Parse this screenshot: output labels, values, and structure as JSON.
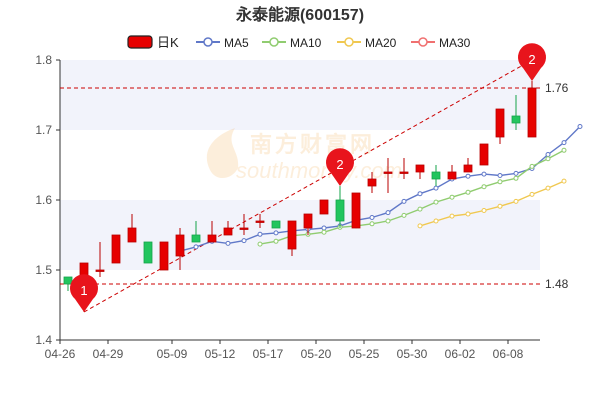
{
  "chart_data": {
    "type": "candlestick",
    "title": "永泰能源(600157)",
    "legend": {
      "placement": "top",
      "items": [
        {
          "name": "日K",
          "color": "#e60000"
        },
        {
          "name": "MA5",
          "color": "#6078c8"
        },
        {
          "name": "MA10",
          "color": "#90cc70"
        },
        {
          "name": "MA20",
          "color": "#f0c850"
        },
        {
          "name": "MA30",
          "color": "#f07070"
        }
      ]
    },
    "ylim": [
      1.4,
      1.8
    ],
    "y_ticks": [
      "1.4",
      "1.5",
      "1.6",
      "1.7",
      "1.8"
    ],
    "x_ticks": [
      {
        "label": "04-26",
        "index": 0
      },
      {
        "label": "04-29",
        "index": 3
      },
      {
        "label": "05-09",
        "index": 7
      },
      {
        "label": "05-12",
        "index": 10
      },
      {
        "label": "05-17",
        "index": 13
      },
      {
        "label": "05-20",
        "index": 16
      },
      {
        "label": "05-25",
        "index": 19
      },
      {
        "label": "05-30",
        "index": 22
      },
      {
        "label": "06-02",
        "index": 25
      },
      {
        "label": "06-08",
        "index": 28
      }
    ],
    "candles": [
      {
        "o": 1.49,
        "c": 1.48,
        "h": 1.49,
        "l": 1.47
      },
      {
        "o": 1.48,
        "c": 1.51,
        "h": 1.51,
        "l": 1.44
      },
      {
        "o": 1.5,
        "c": 1.5,
        "h": 1.54,
        "l": 1.49
      },
      {
        "o": 1.51,
        "c": 1.55,
        "h": 1.55,
        "l": 1.51
      },
      {
        "o": 1.54,
        "c": 1.56,
        "h": 1.58,
        "l": 1.54
      },
      {
        "o": 1.54,
        "c": 1.51,
        "h": 1.54,
        "l": 1.51
      },
      {
        "o": 1.5,
        "c": 1.54,
        "h": 1.54,
        "l": 1.5
      },
      {
        "o": 1.52,
        "c": 1.55,
        "h": 1.56,
        "l": 1.5
      },
      {
        "o": 1.55,
        "c": 1.54,
        "h": 1.57,
        "l": 1.54
      },
      {
        "o": 1.54,
        "c": 1.55,
        "h": 1.57,
        "l": 1.54
      },
      {
        "o": 1.55,
        "c": 1.56,
        "h": 1.57,
        "l": 1.55
      },
      {
        "o": 1.56,
        "c": 1.56,
        "h": 1.58,
        "l": 1.55
      },
      {
        "o": 1.57,
        "c": 1.57,
        "h": 1.58,
        "l": 1.56
      },
      {
        "o": 1.57,
        "c": 1.56,
        "h": 1.57,
        "l": 1.56
      },
      {
        "o": 1.53,
        "c": 1.57,
        "h": 1.57,
        "l": 1.52
      },
      {
        "o": 1.56,
        "c": 1.58,
        "h": 1.58,
        "l": 1.55
      },
      {
        "o": 1.58,
        "c": 1.6,
        "h": 1.6,
        "l": 1.58
      },
      {
        "o": 1.6,
        "c": 1.57,
        "h": 1.62,
        "l": 1.56
      },
      {
        "o": 1.56,
        "c": 1.61,
        "h": 1.61,
        "l": 1.56
      },
      {
        "o": 1.62,
        "c": 1.63,
        "h": 1.64,
        "l": 1.61
      },
      {
        "o": 1.64,
        "c": 1.64,
        "h": 1.66,
        "l": 1.61
      },
      {
        "o": 1.64,
        "c": 1.64,
        "h": 1.66,
        "l": 1.63
      },
      {
        "o": 1.64,
        "c": 1.65,
        "h": 1.65,
        "l": 1.63
      },
      {
        "o": 1.64,
        "c": 1.63,
        "h": 1.65,
        "l": 1.62
      },
      {
        "o": 1.63,
        "c": 1.64,
        "h": 1.65,
        "l": 1.63
      },
      {
        "o": 1.64,
        "c": 1.65,
        "h": 1.66,
        "l": 1.64
      },
      {
        "o": 1.65,
        "c": 1.68,
        "h": 1.68,
        "l": 1.65
      },
      {
        "o": 1.69,
        "c": 1.73,
        "h": 1.73,
        "l": 1.68
      },
      {
        "o": 1.72,
        "c": 1.71,
        "h": 1.75,
        "l": 1.7
      },
      {
        "o": 1.69,
        "c": 1.76,
        "h": 1.77,
        "l": 1.69
      }
    ],
    "series": [
      {
        "name": "MA5",
        "start": 7,
        "values": [
          1.527,
          1.533,
          1.541,
          1.538,
          1.542,
          1.551,
          1.553,
          1.556,
          1.558,
          1.56,
          1.563,
          1.571,
          1.575,
          1.582,
          1.598,
          1.609,
          1.617,
          1.63,
          1.634,
          1.637,
          1.635,
          1.638,
          1.645,
          1.665,
          1.682,
          1.705
        ]
      },
      {
        "name": "MA10",
        "start": 12,
        "values": [
          1.537,
          1.541,
          1.549,
          1.551,
          1.554,
          1.561,
          1.563,
          1.566,
          1.57,
          1.578,
          1.587,
          1.597,
          1.604,
          1.611,
          1.619,
          1.626,
          1.631,
          1.648,
          1.659,
          1.671
        ]
      },
      {
        "name": "MA20",
        "start": 22,
        "values": [
          1.563,
          1.57,
          1.577,
          1.58,
          1.585,
          1.591,
          1.598,
          1.608,
          1.617,
          1.627
        ]
      }
    ],
    "reference_lines": [
      {
        "value": 1.76,
        "label": "1.76"
      },
      {
        "value": 1.48,
        "label": "1.48"
      }
    ],
    "markers": [
      {
        "label": "1",
        "index": 1,
        "value": 1.44
      },
      {
        "label": "2",
        "index": 17,
        "value": 1.62
      },
      {
        "label": "2",
        "index": 29,
        "value": 1.77
      }
    ],
    "trend_line": {
      "from": {
        "index": 1,
        "value": 1.44
      },
      "to": {
        "index": 29,
        "value": 1.8
      }
    },
    "watermark": "南方财富网 southmoney.com",
    "grid": "horizontal-bands"
  }
}
